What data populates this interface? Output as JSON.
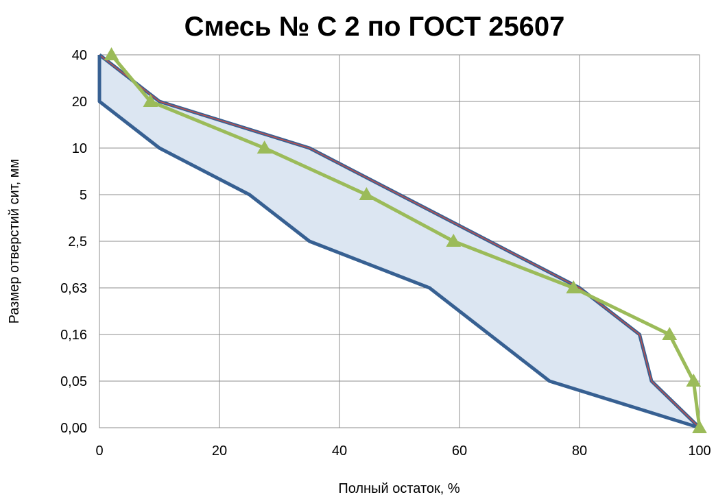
{
  "chart_data": {
    "type": "line",
    "title": "Смесь № С 2 по ГОСТ 25607",
    "xlabel": "Полный остаток, %",
    "ylabel": "Размер отверстий сит, мм",
    "xlim": [
      0,
      100
    ],
    "x_ticks": [
      "0",
      "20",
      "40",
      "60",
      "80",
      "100"
    ],
    "y_categories": [
      "0,00",
      "0,05",
      "0,16",
      "0,63",
      "2,5",
      "5",
      "10",
      "20",
      "40"
    ],
    "grid": true,
    "legend": "none",
    "colors": {
      "band_fill": "#dce6f2",
      "bound": "#376092",
      "bound_inner": "#c0504d",
      "actual": "#9bbb59"
    },
    "series": [
      {
        "role": "upper-bound",
        "points": [
          [
            0,
            "40"
          ],
          [
            10,
            "20"
          ],
          [
            35,
            "10"
          ],
          [
            80,
            "0,63"
          ],
          [
            90,
            "0,16"
          ],
          [
            92,
            "0,05"
          ],
          [
            100,
            "0,00"
          ]
        ]
      },
      {
        "role": "lower-bound",
        "points": [
          [
            0,
            "40"
          ],
          [
            0,
            "20"
          ],
          [
            10,
            "10"
          ],
          [
            25,
            "5"
          ],
          [
            35,
            "2,5"
          ],
          [
            55,
            "0,63"
          ],
          [
            75,
            "0,05"
          ],
          [
            100,
            "0,00"
          ]
        ]
      },
      {
        "role": "actual",
        "points": [
          [
            2,
            "40"
          ],
          [
            8.5,
            "20"
          ],
          [
            27.5,
            "10"
          ],
          [
            44.5,
            "5"
          ],
          [
            59,
            "2,5"
          ],
          [
            79,
            "0,63"
          ],
          [
            95,
            "0,16"
          ],
          [
            99,
            "0,05"
          ],
          [
            100,
            "0,00"
          ]
        ]
      }
    ]
  }
}
